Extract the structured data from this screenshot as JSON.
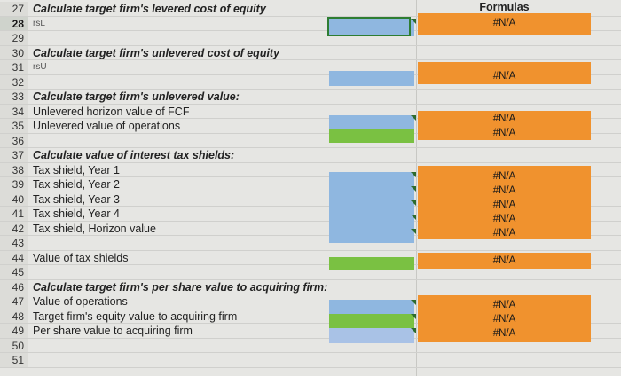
{
  "header": {
    "formulas_label": "Formulas"
  },
  "rows": [
    {
      "num": "27",
      "label": "Calculate target firm's levered cost of equity",
      "style": "b"
    },
    {
      "num": "28",
      "label": "rsL",
      "style": "r"
    },
    {
      "num": "29",
      "label": "",
      "style": ""
    },
    {
      "num": "30",
      "label": "Calculate target firm's unlevered cost of equity",
      "style": "b"
    },
    {
      "num": "31",
      "label": "rsU",
      "style": "r"
    },
    {
      "num": "32",
      "label": "",
      "style": ""
    },
    {
      "num": "33",
      "label": "Calculate target firm's unlevered value:",
      "style": "b"
    },
    {
      "num": "34",
      "label": "Unlevered horizon value of FCF",
      "style": ""
    },
    {
      "num": "35",
      "label": "Unlevered value of operations",
      "style": ""
    },
    {
      "num": "36",
      "label": "",
      "style": ""
    },
    {
      "num": "37",
      "label": "Calculate value of interest tax shields:",
      "style": "b"
    },
    {
      "num": "38",
      "label": "Tax shield, Year 1",
      "style": ""
    },
    {
      "num": "39",
      "label": "Tax shield, Year 2",
      "style": ""
    },
    {
      "num": "40",
      "label": "Tax shield, Year 3",
      "style": ""
    },
    {
      "num": "41",
      "label": "Tax shield, Year 4",
      "style": ""
    },
    {
      "num": "42",
      "label": "Tax shield, Horizon value",
      "style": ""
    },
    {
      "num": "43",
      "label": "",
      "style": ""
    },
    {
      "num": "44",
      "label": "Value of tax shields",
      "style": ""
    },
    {
      "num": "45",
      "label": "",
      "style": ""
    },
    {
      "num": "46",
      "label": "Calculate target firm's per share value to acquiring firm:",
      "style": "b"
    },
    {
      "num": "47",
      "label": "Value of operations",
      "style": ""
    },
    {
      "num": "48",
      "label": "Target firm's equity value to acquiring firm",
      "style": ""
    },
    {
      "num": "49",
      "label": "Per share value to acquiring firm",
      "style": ""
    },
    {
      "num": "50",
      "label": "",
      "style": ""
    },
    {
      "num": "51",
      "label": "",
      "style": ""
    }
  ],
  "formula_cells": {
    "r28": "#N/A",
    "r31": "#N/A",
    "r34": "#N/A",
    "r35": "#N/A",
    "r38": "#N/A",
    "r39": "#N/A",
    "r40": "#N/A",
    "r41": "#N/A",
    "r42": "#N/A",
    "r44": "#N/A",
    "r47": "#N/A",
    "r48": "#N/A",
    "r49": "#N/A"
  },
  "colors": {
    "input_blue": "#8fb7e0",
    "input_green": "#7ac142",
    "formula_orange": "#f0922e"
  }
}
